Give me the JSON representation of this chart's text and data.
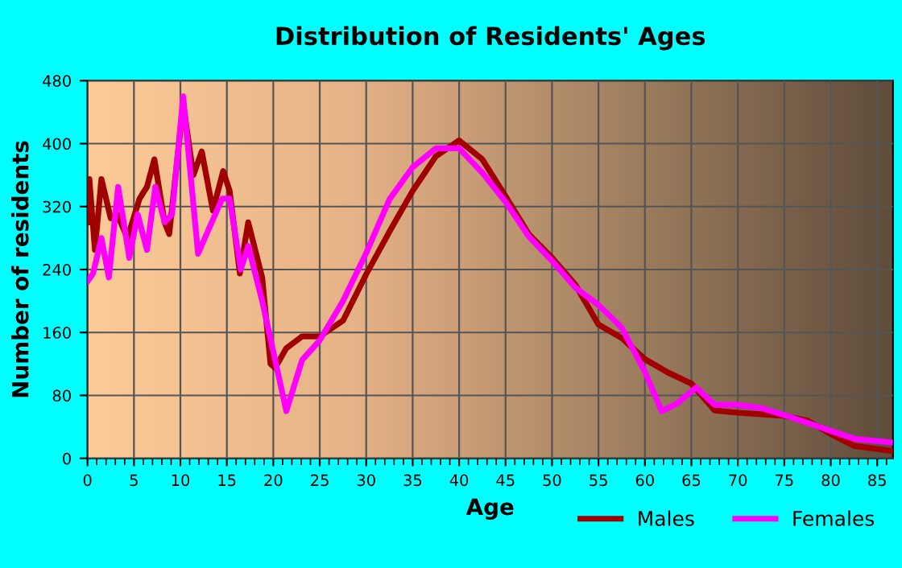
{
  "chart_data": {
    "type": "line",
    "title": "Distribution of Residents' Ages",
    "xlabel": "Age",
    "ylabel": "Number of residents",
    "series": [
      {
        "name": "Males",
        "color": "#a00000",
        "x": [
          0,
          0.2,
          0.8,
          1.5,
          2.5,
          3.2,
          4.3,
          5.6,
          6.4,
          7.2,
          8.3,
          8.8,
          10.3,
          11.4,
          12.3,
          13.5,
          14.6,
          15.3,
          16.4,
          17.3,
          18.8,
          19.7,
          20.2,
          21.4,
          23.1,
          25,
          27.5,
          30,
          32.5,
          35,
          37.5,
          40,
          42.5,
          45,
          47.5,
          50,
          52.5,
          55,
          57.5,
          60,
          62.5,
          65,
          67.5,
          70,
          75,
          77.5,
          80,
          82.5,
          86.7
        ],
        "values": [
          300,
          355,
          265,
          355,
          305,
          310,
          280,
          330,
          345,
          380,
          300,
          285,
          450,
          360,
          390,
          315,
          365,
          340,
          235,
          300,
          230,
          120,
          115,
          140,
          155,
          155,
          175,
          234,
          288,
          340,
          384,
          404,
          380,
          333,
          285,
          255,
          221,
          170,
          153,
          126,
          109,
          95,
          61,
          58,
          54,
          48,
          31,
          16,
          9
        ]
      },
      {
        "name": "Females",
        "color": "#ff00ff",
        "x": [
          0,
          0.6,
          1.5,
          2.3,
          3.3,
          4.5,
          5.4,
          6.4,
          7.3,
          8.3,
          9.1,
          10.3,
          11.9,
          13,
          14.5,
          15.3,
          16.5,
          17.3,
          18.8,
          20.2,
          21.4,
          23.1,
          25,
          27.5,
          30,
          32.5,
          35,
          37.5,
          40,
          42.5,
          45,
          47.5,
          50,
          52.5,
          55,
          57.5,
          60,
          61.8,
          63.5,
          65.5,
          67.5,
          70,
          72.5,
          75,
          80,
          82.5,
          86.7
        ],
        "values": [
          225,
          235,
          280,
          230,
          345,
          255,
          310,
          265,
          345,
          300,
          310,
          460,
          260,
          290,
          330,
          330,
          240,
          270,
          200,
          125,
          60,
          125,
          150,
          200,
          261,
          329,
          370,
          394,
          394,
          363,
          326,
          282,
          251,
          217,
          195,
          166,
          110,
          60,
          70,
          90,
          68,
          68,
          64,
          55,
          35,
          25,
          20
        ]
      }
    ],
    "xlim": [
      0,
      86.7
    ],
    "xticks": [
      0,
      5,
      10,
      15,
      20,
      25,
      30,
      35,
      40,
      45,
      50,
      55,
      60,
      65,
      70,
      75,
      80,
      85
    ],
    "ylim": [
      0,
      480
    ],
    "yticks": [
      0,
      80,
      160,
      240,
      320,
      400,
      480
    ],
    "grid": true,
    "legend": "bottom right",
    "marker": "none",
    "line_style": "solid"
  }
}
